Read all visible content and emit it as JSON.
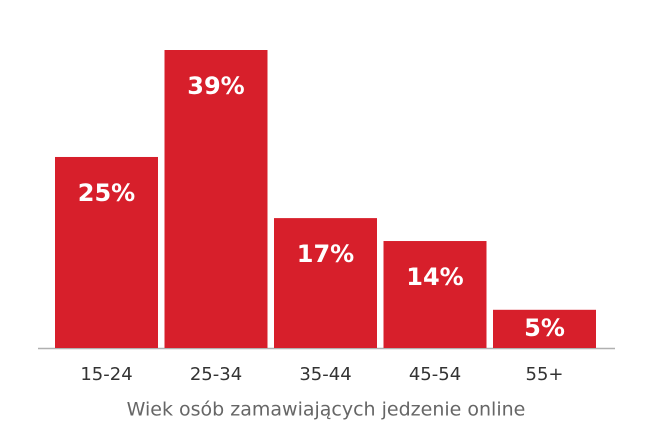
{
  "chart_data": {
    "type": "bar",
    "categories": [
      "15-24",
      "25-34",
      "35-44",
      "45-54",
      "55+"
    ],
    "values": [
      25,
      39,
      17,
      14,
      5
    ],
    "value_labels": [
      "25%",
      "39%",
      "17%",
      "14%",
      "5%"
    ],
    "color": "#d71f2b",
    "x_label": "Wiek osób zamawiających jedzenie online"
  }
}
